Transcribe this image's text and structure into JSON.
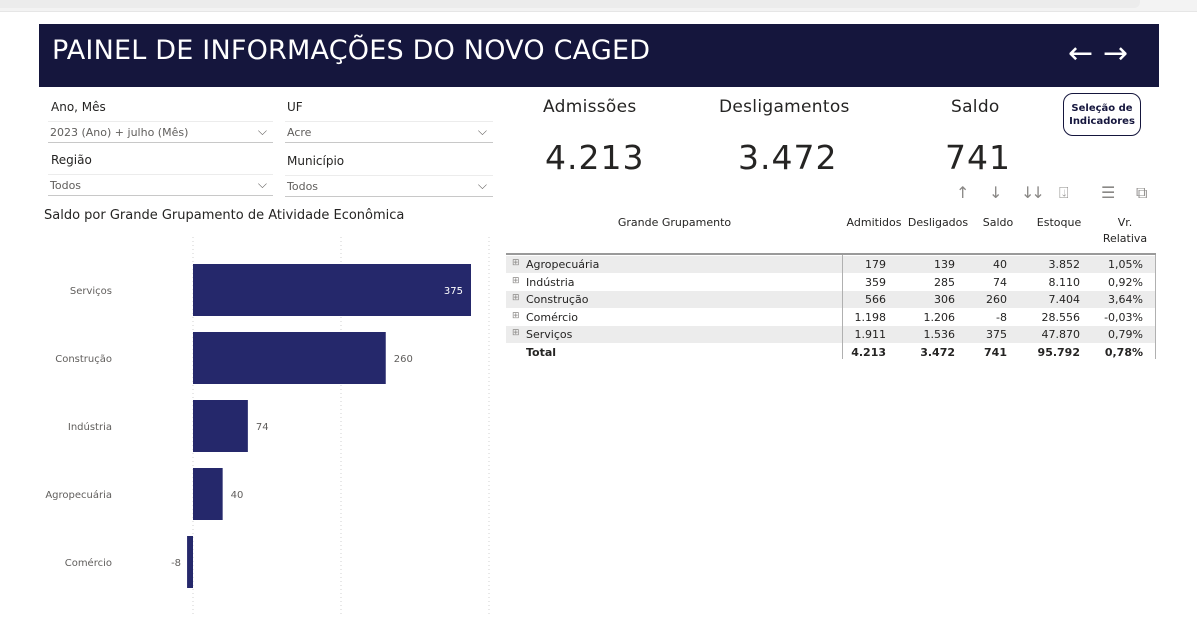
{
  "header": {
    "title": "PAINEL DE INFORMAÇÕES DO NOVO CAGED",
    "back_arrow": "←",
    "forward_arrow": "→",
    "background_color": "#15163d"
  },
  "filters": {
    "ano_mes": {
      "label": "Ano, Mês",
      "value": "2023 (Ano) + julho (Mês)"
    },
    "uf": {
      "label": "UF",
      "value": "Acre"
    },
    "regiao": {
      "label": "Região",
      "value": "Todos"
    },
    "municipio": {
      "label": "Município",
      "value": "Todos"
    }
  },
  "kpis": {
    "admissoes": {
      "label": "Admissões",
      "value": "4.213"
    },
    "desligamentos": {
      "label": "Desligamentos",
      "value": "3.472"
    },
    "saldo": {
      "label": "Saldo",
      "value": "741"
    }
  },
  "selection_button": {
    "line1": "Seleção de",
    "line2": "Indicadores"
  },
  "toolbar_icons": [
    "arrow-up-icon",
    "arrow-down-icon",
    "double-arrow-down-icon",
    "expand-hierarchy-icon",
    "filter-icon",
    "focus-mode-icon"
  ],
  "chart_data": {
    "type": "bar",
    "orientation": "horizontal",
    "title": "Saldo por Grande Grupamento de Atividade Econômica",
    "categories": [
      "Serviços",
      "Construção",
      "Indústria",
      "Agropecuária",
      "Comércio"
    ],
    "values": [
      375,
      260,
      74,
      40,
      -8
    ],
    "xlim": [
      -20,
      375
    ],
    "bar_color": "#25286b",
    "grid": true
  },
  "table": {
    "headers": {
      "grupamento": "Grande Grupamento",
      "admitidos": "Admitidos",
      "desligados": "Desligados",
      "saldo": "Saldo",
      "estoque": "Estoque",
      "vr_line1": "Vr.",
      "vr_line2": "Relativa"
    },
    "rows": [
      {
        "name": "Agropecuária",
        "admitidos": "179",
        "desligados": "139",
        "saldo": "40",
        "estoque": "3.852",
        "vr": "1,05%"
      },
      {
        "name": "Indústria",
        "admitidos": "359",
        "desligados": "285",
        "saldo": "74",
        "estoque": "8.110",
        "vr": "0,92%"
      },
      {
        "name": "Construção",
        "admitidos": "566",
        "desligados": "306",
        "saldo": "260",
        "estoque": "7.404",
        "vr": "3,64%"
      },
      {
        "name": "Comércio",
        "admitidos": "1.198",
        "desligados": "1.206",
        "saldo": "-8",
        "estoque": "28.556",
        "vr": "-0,03%"
      },
      {
        "name": "Serviços",
        "admitidos": "1.911",
        "desligados": "1.536",
        "saldo": "375",
        "estoque": "47.870",
        "vr": "0,79%"
      }
    ],
    "total": {
      "name": "Total",
      "admitidos": "4.213",
      "desligados": "3.472",
      "saldo": "741",
      "estoque": "95.792",
      "vr": "0,78%"
    },
    "expander_glyph": "⊞"
  }
}
